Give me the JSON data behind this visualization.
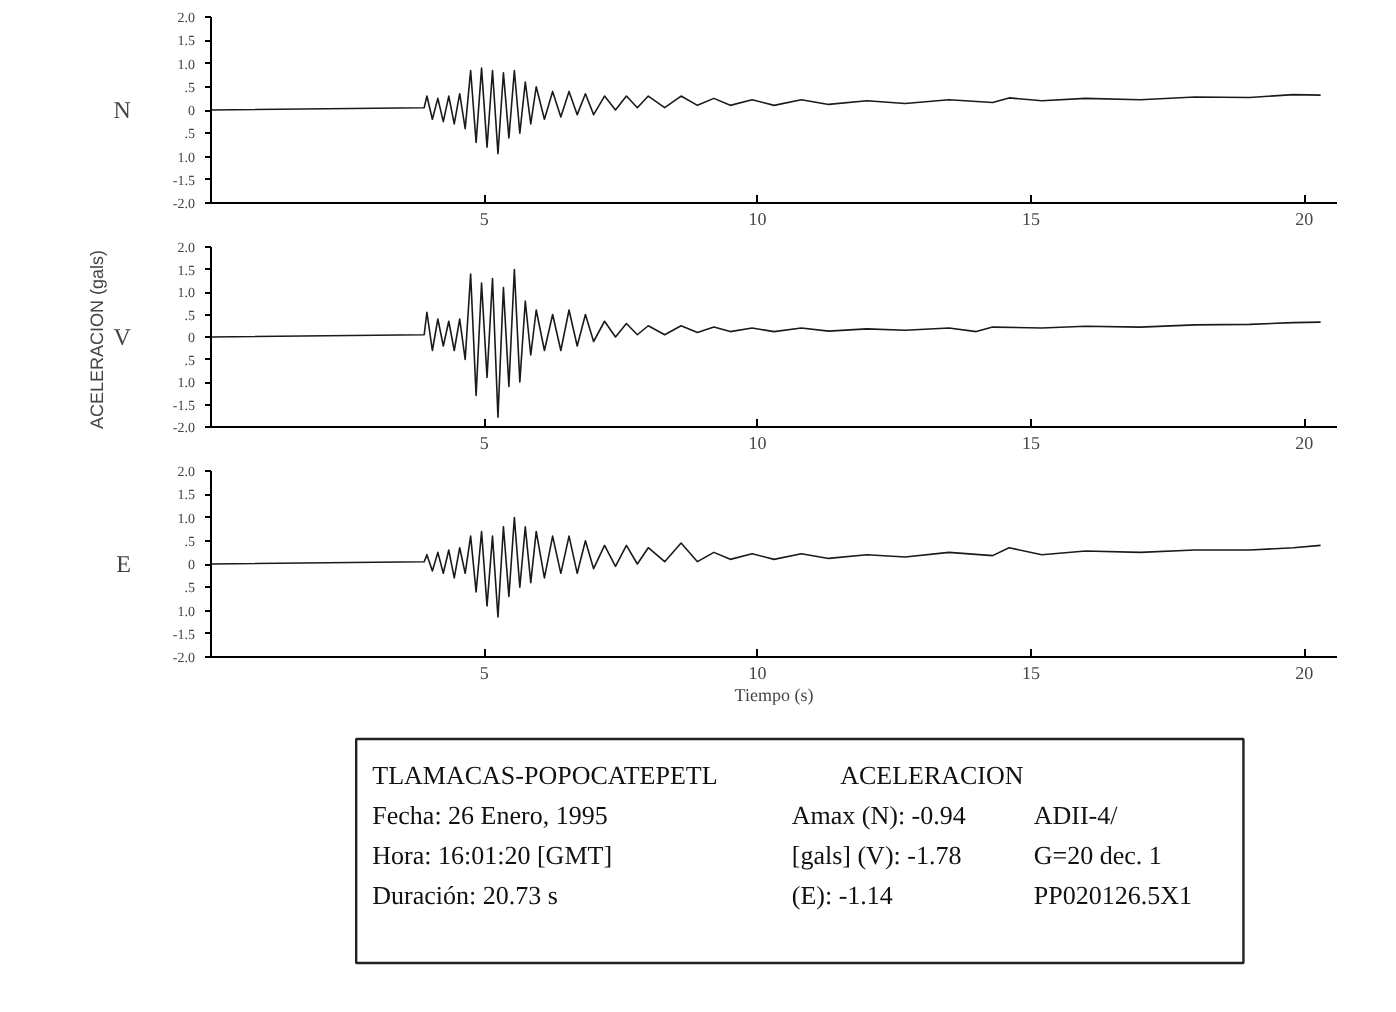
{
  "chart_data": [
    {
      "type": "line",
      "xlim": [
        0,
        20.6
      ],
      "ylim": [
        -2,
        2
      ],
      "xticks": [
        5,
        10,
        15,
        20
      ],
      "yticks": [
        {
          "value": 2,
          "label": "2.0"
        },
        {
          "value": 1.5,
          "label": "1.5"
        },
        {
          "value": 1,
          "label": "1.0"
        },
        {
          "value": 0.5,
          "label": ".5"
        },
        0,
        {
          "value": -0.5,
          "label": ".5"
        },
        {
          "value": -1,
          "label": "1.0"
        },
        {
          "value": -1.5,
          "label": "-1.5"
        },
        {
          "value": -2,
          "label": "-2.0"
        }
      ],
      "x": [
        0,
        3.9,
        3.95,
        4.05,
        4.15,
        4.25,
        4.35,
        4.45,
        4.55,
        4.65,
        4.75,
        4.85,
        4.95,
        5.05,
        5.15,
        5.25,
        5.35,
        5.45,
        5.55,
        5.65,
        5.75,
        5.85,
        5.95,
        6.1,
        6.25,
        6.4,
        6.55,
        6.7,
        6.85,
        7.0,
        7.2,
        7.4,
        7.6,
        7.8,
        8.0,
        8.3,
        8.6,
        8.9,
        9.2,
        9.5,
        9.9,
        10.3,
        10.8,
        11.3,
        12.0,
        12.7,
        13.5,
        14.3,
        14.6,
        15.2,
        16.0,
        17.0,
        18.0,
        19.0,
        19.8,
        20.3
      ],
      "series": [
        {
          "name": "N",
          "color": "#1a1a1a",
          "values": [
            0,
            0.05,
            0.3,
            -0.2,
            0.25,
            -0.25,
            0.3,
            -0.3,
            0.35,
            -0.4,
            0.85,
            -0.7,
            0.9,
            -0.8,
            0.85,
            -0.94,
            0.8,
            -0.6,
            0.85,
            -0.5,
            0.6,
            -0.3,
            0.5,
            -0.2,
            0.4,
            -0.15,
            0.4,
            -0.1,
            0.35,
            -0.1,
            0.3,
            0.0,
            0.3,
            0.05,
            0.3,
            0.05,
            0.3,
            0.1,
            0.25,
            0.1,
            0.22,
            0.1,
            0.22,
            0.12,
            0.2,
            0.14,
            0.22,
            0.16,
            0.26,
            0.2,
            0.25,
            0.22,
            0.28,
            0.27,
            0.33,
            0.32
          ]
        }
      ]
    },
    {
      "type": "line",
      "xlim": [
        0,
        20.6
      ],
      "ylim": [
        -2,
        2
      ],
      "xticks": [
        5,
        10,
        15,
        20
      ],
      "yticks": [
        {
          "value": 2,
          "label": "2.0"
        },
        {
          "value": 1.5,
          "label": "1.5"
        },
        {
          "value": 1,
          "label": "1.0"
        },
        {
          "value": 0.5,
          "label": ".5"
        },
        0,
        {
          "value": -0.5,
          "label": ".5"
        },
        {
          "value": -1,
          "label": "1.0"
        },
        {
          "value": -1.5,
          "label": "-1.5"
        },
        {
          "value": -2,
          "label": "-2.0"
        }
      ],
      "ylabel": "ACELERACION  (gals)",
      "x": [
        0,
        3.9,
        3.95,
        4.05,
        4.15,
        4.25,
        4.35,
        4.45,
        4.55,
        4.65,
        4.75,
        4.85,
        4.95,
        5.05,
        5.15,
        5.25,
        5.35,
        5.45,
        5.55,
        5.65,
        5.75,
        5.85,
        5.95,
        6.1,
        6.25,
        6.4,
        6.55,
        6.7,
        6.85,
        7.0,
        7.2,
        7.4,
        7.6,
        7.8,
        8.0,
        8.3,
        8.6,
        8.9,
        9.2,
        9.5,
        9.9,
        10.3,
        10.8,
        11.3,
        12.0,
        12.7,
        13.5,
        14.0,
        14.3,
        15.2,
        16.0,
        17.0,
        18.0,
        19.0,
        19.8,
        20.3
      ],
      "series": [
        {
          "name": "V",
          "color": "#1a1a1a",
          "values": [
            0,
            0.05,
            0.55,
            -0.3,
            0.4,
            -0.2,
            0.35,
            -0.3,
            0.4,
            -0.5,
            1.4,
            -1.3,
            1.2,
            -0.9,
            1.3,
            -1.78,
            1.1,
            -1.1,
            1.5,
            -1.0,
            0.8,
            -0.4,
            0.6,
            -0.3,
            0.5,
            -0.3,
            0.6,
            -0.2,
            0.5,
            -0.1,
            0.35,
            0.0,
            0.3,
            0.05,
            0.25,
            0.05,
            0.25,
            0.1,
            0.22,
            0.12,
            0.2,
            0.12,
            0.2,
            0.13,
            0.18,
            0.15,
            0.2,
            0.12,
            0.22,
            0.2,
            0.24,
            0.22,
            0.27,
            0.28,
            0.32,
            0.33
          ]
        }
      ]
    },
    {
      "type": "line",
      "xlim": [
        0,
        20.6
      ],
      "ylim": [
        -2,
        2
      ],
      "xticks": [
        5,
        10,
        15,
        20
      ],
      "yticks": [
        {
          "value": 2,
          "label": "2.0"
        },
        {
          "value": 1.5,
          "label": "1.5"
        },
        {
          "value": 1,
          "label": "1.0"
        },
        {
          "value": 0.5,
          "label": ".5"
        },
        0,
        {
          "value": -0.5,
          "label": ".5"
        },
        {
          "value": -1,
          "label": "1.0"
        },
        {
          "value": -1.5,
          "label": "-1.5"
        },
        {
          "value": -2,
          "label": "-2.0"
        }
      ],
      "xlabel": "Tiempo (s)",
      "x": [
        0,
        3.9,
        3.95,
        4.05,
        4.15,
        4.25,
        4.35,
        4.45,
        4.55,
        4.65,
        4.75,
        4.85,
        4.95,
        5.05,
        5.15,
        5.25,
        5.35,
        5.45,
        5.55,
        5.65,
        5.75,
        5.85,
        5.95,
        6.1,
        6.25,
        6.4,
        6.55,
        6.7,
        6.85,
        7.0,
        7.2,
        7.4,
        7.6,
        7.8,
        8.0,
        8.3,
        8.6,
        8.9,
        9.2,
        9.5,
        9.9,
        10.3,
        10.8,
        11.3,
        12.0,
        12.7,
        13.5,
        14.3,
        14.6,
        15.2,
        16.0,
        17.0,
        18.0,
        19.0,
        19.8,
        20.3
      ],
      "series": [
        {
          "name": "E",
          "color": "#1a1a1a",
          "values": [
            0,
            0.05,
            0.2,
            -0.15,
            0.25,
            -0.2,
            0.3,
            -0.3,
            0.35,
            -0.2,
            0.6,
            -0.6,
            0.7,
            -0.9,
            0.6,
            -1.14,
            0.8,
            -0.7,
            1.0,
            -0.5,
            0.8,
            -0.4,
            0.7,
            -0.3,
            0.6,
            -0.2,
            0.6,
            -0.2,
            0.5,
            -0.1,
            0.4,
            -0.05,
            0.4,
            0.0,
            0.35,
            0.05,
            0.45,
            0.05,
            0.25,
            0.1,
            0.22,
            0.1,
            0.22,
            0.12,
            0.2,
            0.15,
            0.25,
            0.18,
            0.35,
            0.2,
            0.28,
            0.25,
            0.3,
            0.3,
            0.35,
            0.4
          ]
        }
      ]
    },
    {
      "type": "other",
      "annotations": [
        "TLAMACAS-POPOCATEPETL",
        "ACELERACION",
        "Fecha:  26 Enero, 1995",
        "Amax (N):  -0.94",
        "ADII-4/",
        "Hora:  16:01:20 [GMT]",
        "[gals] (V):  -1.78",
        "G=20  dec. 1",
        "Duración:  20.73 s",
        "(E):  -1.14",
        "PP020126.5X1"
      ]
    }
  ]
}
